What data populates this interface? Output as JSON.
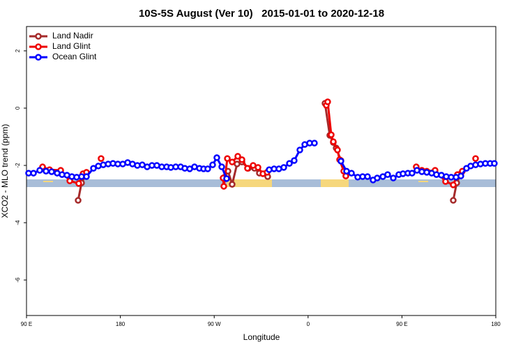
{
  "chart_data": {
    "type": "line",
    "title": "10S-5S August (Ver 10)   2015-01-01 to 2020-12-18",
    "x_label": "Longitude",
    "y_label": "XCO2 - MLO trend (ppm)",
    "xlim": [
      90,
      540
    ],
    "ylim": [
      -7.24,
      2.85
    ],
    "xticks": [
      {
        "value": 90,
        "label": "90 E"
      },
      {
        "value": 180,
        "label": "180"
      },
      {
        "value": 270,
        "label": "90 W"
      },
      {
        "value": 360,
        "label": "0"
      },
      {
        "value": 450,
        "label": "90 E"
      },
      {
        "value": 540,
        "label": "180"
      }
    ],
    "yticks": [
      2,
      0,
      -2,
      -4,
      -6
    ],
    "legend": "top-left",
    "series": [
      {
        "name": "Land Nadir",
        "color": "#a52a2a",
        "x": [
          139.5,
          142.8,
          146.8,
          null,
          279.9,
          283.2,
          287.2,
          291.9,
          296.6,
          302.6,
          308.6,
          313.3,
          321.3,
          null,
          376.2,
          380.8,
          384.2,
          386.9,
          391.5,
          396.2,
          null,
          499.2,
          502.5,
          506.5
        ],
        "values": [
          -3.22,
          -2.61,
          -2.34,
          null,
          -2.41,
          -2.2,
          -2.66,
          -1.95,
          -1.88,
          -2.1,
          -2.1,
          -2.27,
          -2.39,
          null,
          0.17,
          -0.95,
          -1.2,
          -1.39,
          -1.83,
          -2.37,
          null,
          -3.22,
          -2.61,
          -2.29
        ]
      },
      {
        "name": "Land Glint",
        "color": "#ee0000",
        "x": [
          105.4,
          112.1,
          122.8,
          131.5,
          140.1,
          144.2,
          147.5,
          null,
          161.5,
          null,
          278.5,
          279.2,
          282.6,
          287.2,
          292.6,
          296.6,
          301.9,
          307.3,
          312.0,
          316.7,
          320.7,
          null,
          377.5,
          378.8,
          382.2,
          384.2,
          388.2,
          390.2,
          394.2,
          396.2,
          null,
          463.7,
          469.1,
          473.8,
          481.8,
          491.8,
          499.2,
          503.2,
          507.9,
          null,
          520.6
        ],
        "values": [
          -2.05,
          -2.15,
          -2.17,
          -2.54,
          -2.63,
          -2.29,
          -2.24,
          null,
          -1.76,
          null,
          -2.44,
          -2.73,
          -1.76,
          -1.88,
          -1.68,
          -1.8,
          -2.1,
          -2.0,
          -2.07,
          -2.29,
          -2.24,
          null,
          0.1,
          0.22,
          -0.93,
          -1.17,
          -1.46,
          -1.8,
          -2.2,
          -2.37,
          null,
          -2.05,
          -2.17,
          -2.2,
          -2.17,
          -2.56,
          -2.68,
          -2.32,
          -2.2,
          null,
          -1.76
        ]
      },
      {
        "name": "Ocean Glint",
        "color": "#0000ff",
        "x": [
          92.0,
          96.7,
          102.7,
          108.7,
          114.1,
          119.4,
          124.1,
          128.8,
          133.5,
          138.1,
          142.8,
          147.5,
          154.2,
          158.9,
          163.6,
          168.3,
          172.9,
          177.6,
          182.3,
          187.0,
          191.6,
          196.3,
          201.0,
          205.7,
          210.3,
          215.0,
          219.7,
          224.4,
          228.4,
          233.1,
          237.8,
          241.8,
          246.5,
          251.1,
          255.8,
          259.8,
          263.8,
          268.5,
          272.5,
          277.2,
          281.9,
          null,
          322.7,
          327.4,
          332.0,
          336.7,
          342.1,
          346.7,
          352.1,
          356.8,
          361.5,
          366.1,
          null,
          391.5,
          396.9,
          401.6,
          407.6,
          412.3,
          417.0,
          422.3,
          426.3,
          431.7,
          436.3,
          441.7,
          447.0,
          451.0,
          455.7,
          459.7,
          464.4,
          469.1,
          473.8,
          478.5,
          483.1,
          487.8,
          492.5,
          497.2,
          501.9,
          506.5,
          511.9,
          515.9,
          520.6,
          525.3,
          530.0,
          534.6,
          538.6
        ],
        "values": [
          -2.27,
          -2.27,
          -2.17,
          -2.2,
          -2.22,
          -2.27,
          -2.32,
          -2.34,
          -2.39,
          -2.41,
          -2.39,
          -2.39,
          -2.1,
          -2.02,
          -1.98,
          -1.95,
          -1.93,
          -1.95,
          -1.95,
          -1.9,
          -1.95,
          -2.0,
          -1.98,
          -2.05,
          -2.0,
          -2.0,
          -2.05,
          -2.05,
          -2.07,
          -2.05,
          -2.05,
          -2.1,
          -2.12,
          -2.05,
          -2.1,
          -2.12,
          -2.12,
          -1.98,
          -1.73,
          -2.05,
          -2.46,
          null,
          -2.15,
          -2.12,
          -2.12,
          -2.07,
          -1.93,
          -1.83,
          -1.46,
          -1.27,
          -1.22,
          -1.22,
          null,
          -1.85,
          -2.2,
          -2.27,
          -2.41,
          -2.39,
          -2.39,
          -2.51,
          -2.44,
          -2.39,
          -2.32,
          -2.44,
          -2.32,
          -2.29,
          -2.27,
          -2.27,
          -2.17,
          -2.22,
          -2.24,
          -2.27,
          -2.32,
          -2.34,
          -2.39,
          -2.41,
          -2.41,
          -2.37,
          -2.1,
          -2.02,
          -1.98,
          -1.95,
          -1.93,
          -1.93,
          -1.93
        ]
      }
    ]
  }
}
